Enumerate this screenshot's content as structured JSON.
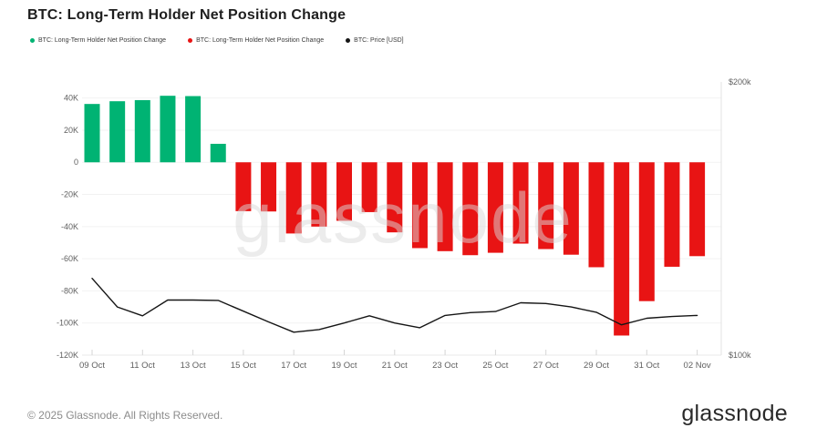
{
  "header": {
    "title": "BTC: Long-Term Holder Net Position Change"
  },
  "legend": {
    "items": [
      {
        "label": "BTC: Long-Term Holder Net Position Change",
        "color": "#00b373"
      },
      {
        "label": "BTC: Long-Term Holder Net Position Change",
        "color": "#e81414"
      },
      {
        "label": "BTC: Price [USD]",
        "color": "#151515"
      }
    ]
  },
  "watermark": {
    "text": "glassnode"
  },
  "footer": {
    "copyright": "© 2025 Glassnode. All Rights Reserved.",
    "logo_text": "glassnode"
  },
  "chart_data": {
    "type": "bar",
    "title": "BTC: Long-Term Holder Net Position Change",
    "grid": true,
    "legend_position": "top",
    "categories": [
      "09 Oct",
      "10 Oct",
      "11 Oct",
      "12 Oct",
      "13 Oct",
      "14 Oct",
      "15 Oct",
      "16 Oct",
      "17 Oct",
      "18 Oct",
      "19 Oct",
      "20 Oct",
      "21 Oct",
      "22 Oct",
      "23 Oct",
      "24 Oct",
      "25 Oct",
      "26 Oct",
      "27 Oct",
      "28 Oct",
      "29 Oct",
      "30 Oct",
      "31 Oct",
      "01 Nov",
      "02 Nov"
    ],
    "series": [
      {
        "name": "BTC: Long-Term Holder Net Position Change",
        "type": "bar",
        "axis": "left",
        "positive_color": "#00b373",
        "negative_color": "#e81414",
        "values": [
          36300,
          38000,
          38700,
          41400,
          41200,
          11500,
          -30400,
          -30600,
          -44300,
          -40000,
          -36400,
          -31000,
          -43600,
          -53400,
          -55300,
          -57800,
          -56300,
          -50600,
          -54000,
          -57500,
          -65300,
          -107800,
          -86400,
          -65000,
          -58400
        ]
      },
      {
        "name": "BTC: Price [USD]",
        "type": "line",
        "axis": "right",
        "color": "#151515",
        "values": [
          121500,
          113000,
          110500,
          115000,
          115000,
          114900,
          111800,
          108800,
          106000,
          106700,
          108500,
          110500,
          108500,
          107200,
          110600,
          111400,
          111700,
          114200,
          114000,
          113000,
          111500,
          108000,
          109800,
          110300,
          110600
        ]
      }
    ],
    "left_axis": {
      "ylim": [
        -120000,
        50000
      ],
      "tick_labels": [
        "40K",
        "20K",
        "0",
        "-20K",
        "-40K",
        "-60K",
        "-80K",
        "-100K",
        "-120K"
      ],
      "tick_values": [
        40000,
        20000,
        0,
        -20000,
        -40000,
        -60000,
        -80000,
        -100000,
        -120000
      ]
    },
    "right_axis": {
      "scale": "log",
      "ylim": [
        100000,
        200000
      ],
      "tick_labels": [
        "$200k",
        "$100k"
      ],
      "tick_values": [
        200000,
        100000
      ]
    },
    "x_tick_labels": [
      "09 Oct",
      "11 Oct",
      "13 Oct",
      "15 Oct",
      "17 Oct",
      "19 Oct",
      "21 Oct",
      "23 Oct",
      "25 Oct",
      "27 Oct",
      "29 Oct",
      "31 Oct",
      "02 Nov"
    ]
  }
}
